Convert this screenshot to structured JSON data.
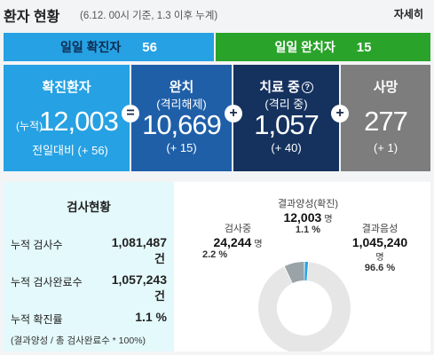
{
  "header": {
    "title": "환자 현황",
    "subtitle": "(6.12. 00시 기준, 1.3 이후 누계)",
    "more_label": "자세히"
  },
  "daily": {
    "confirmed_label": "일일 확진자",
    "confirmed_value": "56",
    "recovered_label": "일일 완치자",
    "recovered_value": "15"
  },
  "cards": {
    "confirmed": {
      "title": "확진환자",
      "prefix": "(누적)",
      "value": "12,003",
      "delta": "전일대비 (+ 56)"
    },
    "recovered": {
      "title": "완치",
      "sub": "(격리해제)",
      "value": "10,669",
      "delta": "(+ 15)"
    },
    "treating": {
      "title": "치료 중",
      "sub": "(격리 중)",
      "value": "1,057",
      "delta": "(+ 40)"
    },
    "deaths": {
      "title": "사망",
      "value": "277",
      "delta": "(+ 1)"
    }
  },
  "operators": {
    "eq": "=",
    "plus": "+"
  },
  "tests": {
    "title": "검사현황",
    "rows": [
      {
        "label": "누적 검사수",
        "value": "1,081,487",
        "unit": "건"
      },
      {
        "label": "누적 검사완료수",
        "value": "1,057,243",
        "unit": "건"
      },
      {
        "label": "누적 확진률",
        "value": "1.1 %"
      }
    ],
    "note": "(결과양성 / 총 검사완료수 * 100%)"
  },
  "donut": {
    "colors": {
      "positive": "#29a3e3",
      "testing": "#9aa3a8",
      "negative": "#e6e6e6"
    },
    "segments": [
      {
        "label": "결과양성(확진)",
        "value": "12,003",
        "unit": "명",
        "percent": "1.1 %",
        "share": 0.011
      },
      {
        "label": "검사중",
        "value": "24,244",
        "unit": "명",
        "percent": "2.2 %",
        "share": 0.022
      },
      {
        "label": "결과음성",
        "value": "1,045,240",
        "unit": "명",
        "percent": "96.6 %",
        "share": 0.966
      }
    ]
  }
}
